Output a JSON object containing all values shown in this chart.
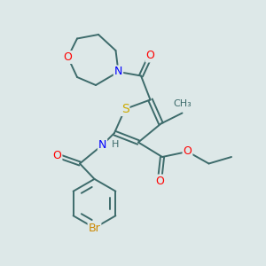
{
  "background_color": "#dde8e8",
  "bond_color": "#3d6b6b",
  "atom_colors": {
    "O": "#ff0000",
    "N": "#0000ff",
    "S": "#ccaa00",
    "Br": "#cc8800",
    "C": "#3d6b6b",
    "H": "#444444"
  },
  "font_size": 9,
  "line_width": 1.4
}
